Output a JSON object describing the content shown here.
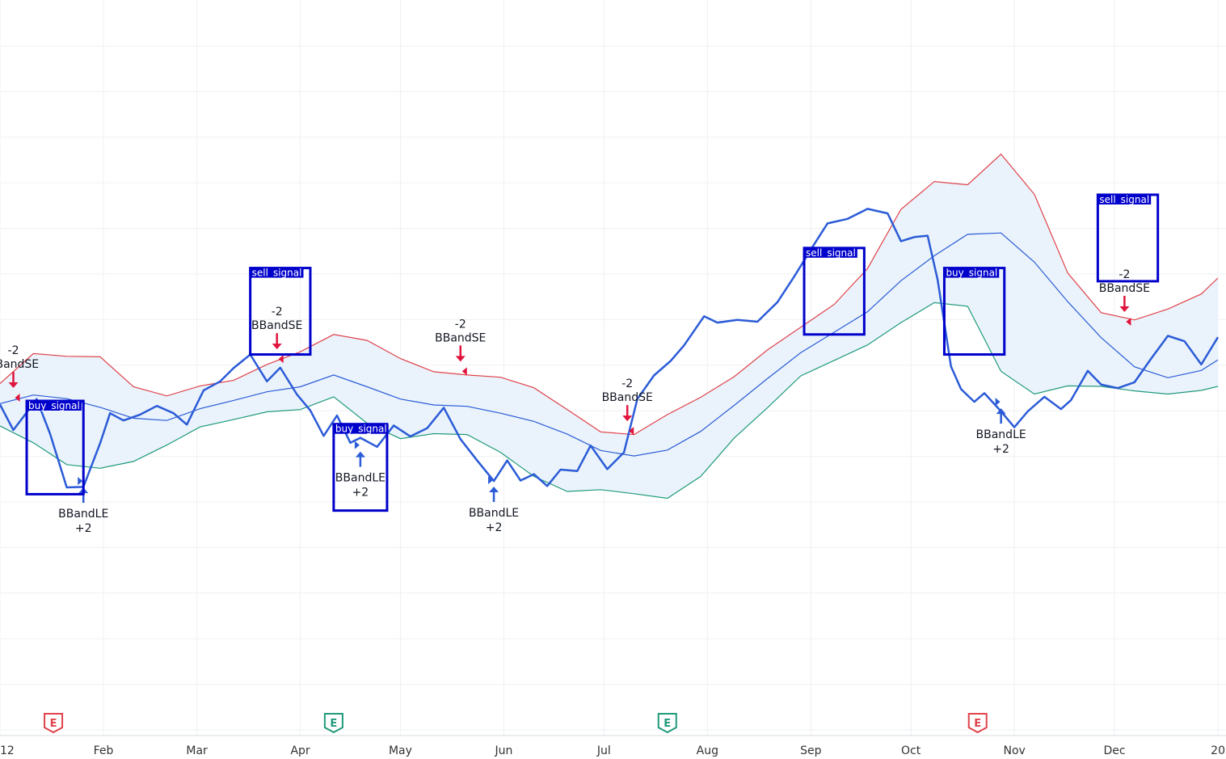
{
  "colors": {
    "price": "#2b5bd7",
    "basis": "#2b5bd7",
    "upper": "#e0424a",
    "lower": "#1f9a7a",
    "fill": "#eaf3fb",
    "sell_arrow": "#e0143c",
    "buy_arrow": "#2b5bd7",
    "box": "#0000cc",
    "grid": "#eef0f3",
    "earnings_red": "#e0424a",
    "earnings_green": "#1f9a7a"
  },
  "chart_data": {
    "type": "line",
    "title": "",
    "xlabel": "",
    "ylabel": "",
    "grid": true,
    "x_axis": {
      "range": [
        0,
        365
      ],
      "ticks": [
        {
          "day": 0,
          "label": "12"
        },
        {
          "day": 31,
          "label": "Feb"
        },
        {
          "day": 59,
          "label": "Mar"
        },
        {
          "day": 90,
          "label": "Apr"
        },
        {
          "day": 120,
          "label": "May"
        },
        {
          "day": 151,
          "label": "Jun"
        },
        {
          "day": 181,
          "label": "Jul"
        },
        {
          "day": 212,
          "label": "Aug"
        },
        {
          "day": 243,
          "label": "Sep"
        },
        {
          "day": 273,
          "label": "Oct"
        },
        {
          "day": 304,
          "label": "Nov"
        },
        {
          "day": 334,
          "label": "Dec"
        },
        {
          "day": 365,
          "label": "20"
        }
      ]
    },
    "y_axis": {
      "range": [
        0,
        100
      ],
      "ticks": []
    },
    "series": [
      {
        "key": "price",
        "x": [
          0,
          4,
          7,
          11,
          15,
          20,
          25,
          30,
          33,
          37,
          42,
          47,
          52,
          56,
          61,
          66,
          70,
          75,
          80,
          84,
          89,
          93,
          97,
          101,
          105,
          108,
          113,
          118,
          123,
          128,
          133,
          138,
          143,
          148,
          152,
          156,
          160,
          164,
          168,
          173,
          177,
          182,
          187,
          191,
          196,
          201,
          205,
          211,
          215,
          221,
          227,
          233,
          238,
          244,
          248,
          254,
          260,
          266,
          270,
          274,
          278,
          281,
          285,
          288,
          292,
          295,
          300,
          304,
          308,
          313,
          318,
          321,
          326,
          330,
          335,
          340,
          345,
          350,
          355,
          360,
          365
        ],
        "y": [
          53.2,
          47.6,
          50.5,
          54.4,
          46.8,
          35.0,
          35.1,
          44.7,
          51.3,
          49.7,
          51.0,
          52.9,
          51.3,
          48.8,
          56.3,
          58.3,
          61.2,
          64.2,
          58.3,
          61.3,
          55.4,
          51.9,
          46.3,
          50.8,
          44.8,
          45.9,
          43.9,
          48.6,
          46.2,
          48.0,
          52.5,
          45.6,
          40.9,
          36.4,
          40.9,
          36.5,
          37.9,
          35.3,
          38.9,
          38.6,
          44.2,
          39.0,
          42.7,
          54.4,
          59.6,
          62.8,
          66.2,
          72.6,
          71.2,
          71.8,
          71.4,
          75.7,
          81.3,
          88.4,
          93.0,
          94.0,
          96.2,
          95.2,
          89.1,
          90.0,
          90.3,
          80.6,
          61.6,
          56.6,
          53.8,
          55.7,
          51.7,
          48.2,
          51.7,
          54.9,
          52.2,
          54.2,
          60.6,
          57.6,
          56.8,
          58.1,
          63.3,
          68.3,
          67.1,
          62.0,
          68.0
        ]
      },
      {
        "key": "basis",
        "x": [
          0,
          10,
          20,
          30,
          40,
          50,
          60,
          70,
          80,
          90,
          100,
          110,
          120,
          130,
          140,
          150,
          160,
          170,
          180,
          190,
          200,
          210,
          220,
          230,
          240,
          250,
          260,
          270,
          280,
          290,
          300,
          310,
          320,
          330,
          340,
          350,
          360,
          365
        ],
        "y": [
          53.4,
          55.3,
          54.5,
          52.6,
          50.2,
          49.7,
          52.3,
          54.1,
          56.0,
          57.1,
          59.7,
          57.1,
          54.4,
          53.1,
          52.8,
          51.3,
          49.5,
          46.7,
          43.1,
          41.9,
          43.2,
          47.3,
          53.0,
          58.9,
          64.6,
          69.1,
          73.6,
          80.4,
          85.9,
          90.6,
          90.9,
          84.5,
          75.8,
          67.9,
          61.5,
          59.1,
          60.7,
          63.0
        ]
      },
      {
        "key": "upper",
        "x": [
          0,
          10,
          20,
          30,
          40,
          50,
          60,
          70,
          80,
          90,
          100,
          110,
          120,
          130,
          140,
          150,
          160,
          170,
          180,
          190,
          200,
          210,
          220,
          230,
          240,
          250,
          260,
          270,
          280,
          290,
          300,
          310,
          320,
          330,
          340,
          350,
          360,
          365
        ],
        "y": [
          57.8,
          64.4,
          63.8,
          63.7,
          57.1,
          55.1,
          57.3,
          58.5,
          62.0,
          64.8,
          68.6,
          67.3,
          63.3,
          60.4,
          59.7,
          59.2,
          56.9,
          52.1,
          47.2,
          46.6,
          51.0,
          54.8,
          59.3,
          65.2,
          70.2,
          75.2,
          83.1,
          96.1,
          102.2,
          101.5,
          108.2,
          99.4,
          82.1,
          73.4,
          71.8,
          74.2,
          77.5,
          81.0
        ]
      },
      {
        "key": "lower",
        "x": [
          0,
          10,
          20,
          30,
          40,
          50,
          60,
          70,
          80,
          90,
          100,
          110,
          120,
          130,
          140,
          150,
          160,
          170,
          180,
          190,
          200,
          210,
          220,
          230,
          240,
          250,
          260,
          270,
          280,
          290,
          300,
          310,
          320,
          330,
          340,
          350,
          360,
          365
        ],
        "y": [
          48.5,
          44.8,
          40.0,
          39.2,
          40.7,
          44.3,
          48.3,
          49.9,
          51.6,
          52.1,
          54.9,
          49.1,
          45.7,
          46.8,
          46.6,
          42.7,
          37.4,
          34.1,
          34.5,
          33.6,
          32.6,
          37.4,
          45.8,
          52.5,
          59.5,
          62.9,
          66.3,
          71.2,
          75.6,
          74.8,
          60.5,
          55.5,
          57.3,
          57.2,
          56.2,
          55.5,
          56.3,
          57.2
        ]
      }
    ],
    "signals": [
      {
        "type": "sell",
        "day": 4,
        "value": 54.7,
        "qty": "-2",
        "label": "BBandSE"
      },
      {
        "type": "buy",
        "day": 25,
        "value": 36.4,
        "qty": "+2",
        "label": "BBandLE"
      },
      {
        "type": "sell",
        "day": 83,
        "value": 63.2,
        "qty": "-2",
        "label": "BBandSE"
      },
      {
        "type": "buy",
        "day": 108,
        "value": 44.3,
        "qty": "+2",
        "label": "BBandLE"
      },
      {
        "type": "sell",
        "day": 138,
        "value": 60.5,
        "qty": "-2",
        "label": "BBandSE"
      },
      {
        "type": "buy",
        "day": 148,
        "value": 36.6,
        "qty": "+2",
        "label": "BBandLE"
      },
      {
        "type": "sell",
        "day": 188,
        "value": 47.4,
        "qty": "-2",
        "label": "BBandSE"
      },
      {
        "type": "buy",
        "day": 300,
        "value": 53.8,
        "qty": "+2",
        "label": "BBandLE"
      },
      {
        "type": "sell",
        "day": 337,
        "value": 71.4,
        "qty": "-2",
        "label": "BBandSE"
      }
    ],
    "annotations": [
      {
        "label": "buy_signal",
        "x_range": [
          8,
          25
        ],
        "y_range": [
          33.5,
          54.0
        ]
      },
      {
        "label": "sell_signal",
        "x_range": [
          75,
          93
        ],
        "y_range": [
          64.2,
          83.2
        ]
      },
      {
        "label": "buy_signal",
        "x_range": [
          100,
          116
        ],
        "y_range": [
          29.9,
          48.9
        ]
      },
      {
        "label": "sell_signal",
        "x_range": [
          241,
          259
        ],
        "y_range": [
          68.6,
          87.6
        ]
      },
      {
        "label": "buy_signal",
        "x_range": [
          283,
          301
        ],
        "y_range": [
          64.2,
          83.2
        ]
      },
      {
        "label": "sell_signal",
        "x_range": [
          329,
          347
        ],
        "y_range": [
          80.3,
          99.3
        ]
      }
    ],
    "earnings": [
      {
        "day": 16,
        "label": "E",
        "tone": "red"
      },
      {
        "day": 100,
        "label": "E",
        "tone": "green"
      },
      {
        "day": 200,
        "label": "E",
        "tone": "green"
      },
      {
        "day": 293,
        "label": "E",
        "tone": "red"
      }
    ]
  }
}
